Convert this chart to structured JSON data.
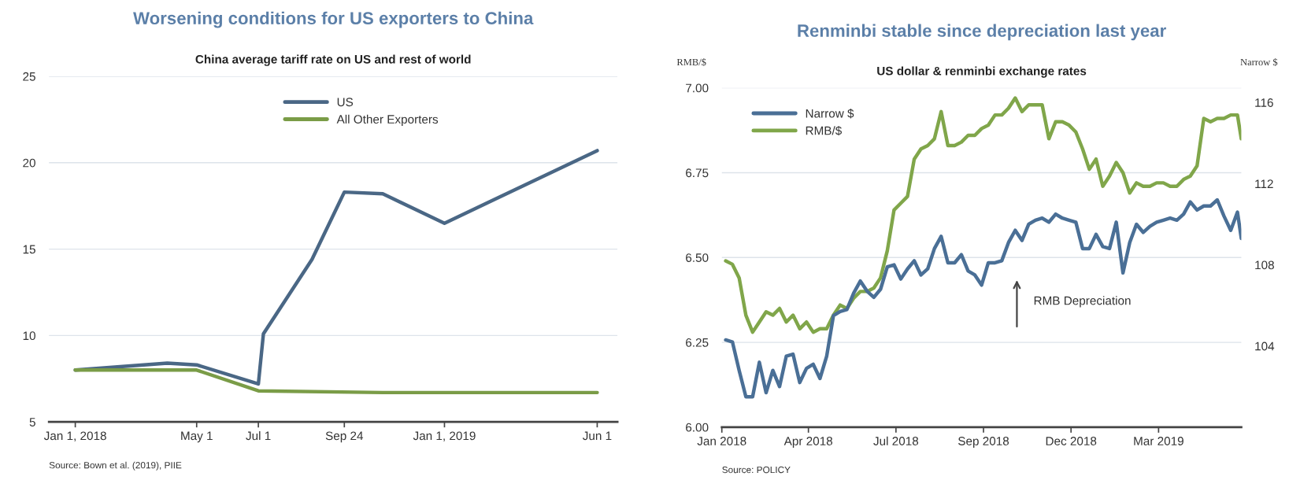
{
  "chart_data": [
    {
      "type": "line",
      "title": "Worsening conditions for US exporters to China",
      "subtitle": "China average tariff rate on US and rest of world",
      "annotations": [
        "Source: Bown et al. (2019), PIIE"
      ],
      "series": [
        {
          "name": "US",
          "color": "#4a6785",
          "x": [
            "2018-01-01",
            "2018-04-02",
            "2018-05-01",
            "2018-07-01",
            "2018-07-06",
            "2018-08-23",
            "2018-09-24",
            "2018-11-01",
            "2019-01-01",
            "2019-06-01"
          ],
          "values": [
            8.0,
            8.4,
            8.3,
            7.2,
            10.1,
            14.4,
            18.3,
            18.2,
            16.5,
            20.7
          ]
        },
        {
          "name": "All Other Exporters",
          "color": "#7a9c47",
          "x": [
            "2018-01-01",
            "2018-05-01",
            "2018-07-01",
            "2018-11-01",
            "2019-06-01"
          ],
          "values": [
            8.0,
            8.0,
            6.8,
            6.7,
            6.7
          ]
        }
      ],
      "xlim": [
        "2017-12-06",
        "2019-06-21"
      ],
      "xticks": [
        {
          "value": "2018-01-01",
          "label": "Jan 1, 2018"
        },
        {
          "value": "2018-05-01",
          "label": "May 1"
        },
        {
          "value": "2018-07-01",
          "label": "Jul 1"
        },
        {
          "value": "2018-09-24",
          "label": "Sep 24"
        },
        {
          "value": "2019-01-01",
          "label": "Jan 1, 2019"
        },
        {
          "value": "2019-06-01",
          "label": "Jun 1"
        }
      ],
      "ylim": [
        5,
        25
      ],
      "yticks": [
        5,
        10,
        15,
        20,
        25
      ],
      "grid": "y",
      "legend": "top"
    },
    {
      "type": "line",
      "title": "Renminbi stable since depreciation last year",
      "subtitle": "US dollar & renminbi exchange rates",
      "ylabel": "RMB/$",
      "y2label": "Narrow $",
      "annotations": [
        "RMB Depreciation",
        "Source: POLICY"
      ],
      "series": [
        {
          "name": "Narrow $",
          "color": "#4a6f96",
          "axis": "y2",
          "x": [
            "2018-01-05",
            "2018-01-12",
            "2018-01-19",
            "2018-01-26",
            "2018-02-02",
            "2018-02-09",
            "2018-02-16",
            "2018-02-23",
            "2018-03-02",
            "2018-03-09",
            "2018-03-16",
            "2018-03-23",
            "2018-03-30",
            "2018-04-06",
            "2018-04-13",
            "2018-04-20",
            "2018-04-27",
            "2018-05-04",
            "2018-05-11",
            "2018-05-18",
            "2018-05-25",
            "2018-06-01",
            "2018-06-08",
            "2018-06-15",
            "2018-06-22",
            "2018-06-29",
            "2018-07-06",
            "2018-07-13",
            "2018-07-20",
            "2018-07-27",
            "2018-08-03",
            "2018-08-10",
            "2018-08-17",
            "2018-08-24",
            "2018-08-31",
            "2018-09-07",
            "2018-09-14",
            "2018-09-21",
            "2018-09-28",
            "2018-10-05",
            "2018-10-12",
            "2018-10-19",
            "2018-10-26",
            "2018-11-02",
            "2018-11-09",
            "2018-11-16",
            "2018-11-23",
            "2018-11-30",
            "2018-12-07",
            "2018-12-14",
            "2018-12-21",
            "2018-12-28",
            "2019-01-04",
            "2019-01-11",
            "2019-01-18",
            "2019-01-25",
            "2019-02-01",
            "2019-02-08",
            "2019-02-15",
            "2019-02-22",
            "2019-03-01",
            "2019-03-08",
            "2019-03-15",
            "2019-03-22",
            "2019-03-29",
            "2019-04-05",
            "2019-04-12",
            "2019-04-19",
            "2019-04-26",
            "2019-05-03",
            "2019-05-10",
            "2019-05-17",
            "2019-05-24",
            "2019-05-31",
            "2019-06-07",
            "2019-06-14",
            "2019-06-21",
            "2019-06-25"
          ],
          "values": [
            104.3,
            104.2,
            102.8,
            101.5,
            101.5,
            103.2,
            101.7,
            102.8,
            102.0,
            103.5,
            103.6,
            102.2,
            102.9,
            103.1,
            102.4,
            103.5,
            105.5,
            105.7,
            105.8,
            106.6,
            107.2,
            106.7,
            106.4,
            106.8,
            107.9,
            108.0,
            107.3,
            107.8,
            108.2,
            107.5,
            107.8,
            108.8,
            109.4,
            108.1,
            108.1,
            108.5,
            107.7,
            107.5,
            107.0,
            108.1,
            108.1,
            108.2,
            109.1,
            109.7,
            109.2,
            110.0,
            110.2,
            110.3,
            110.1,
            110.5,
            110.3,
            110.2,
            110.1,
            108.8,
            108.8,
            109.5,
            108.9,
            108.8,
            110.1,
            107.6,
            109.1,
            110.0,
            109.6,
            109.9,
            110.1,
            110.2,
            110.3,
            110.2,
            110.5,
            111.1,
            110.7,
            110.9,
            110.9,
            111.2,
            110.4,
            109.7,
            110.6,
            109.3
          ]
        },
        {
          "name": "RMB/$",
          "color": "#80a64a",
          "x": [
            "2018-01-05",
            "2018-01-12",
            "2018-01-19",
            "2018-01-26",
            "2018-02-02",
            "2018-02-09",
            "2018-02-16",
            "2018-02-23",
            "2018-03-02",
            "2018-03-09",
            "2018-03-16",
            "2018-03-23",
            "2018-03-30",
            "2018-04-06",
            "2018-04-13",
            "2018-04-20",
            "2018-04-27",
            "2018-05-04",
            "2018-05-11",
            "2018-05-18",
            "2018-05-25",
            "2018-06-01",
            "2018-06-08",
            "2018-06-15",
            "2018-06-22",
            "2018-06-29",
            "2018-07-06",
            "2018-07-13",
            "2018-07-20",
            "2018-07-27",
            "2018-08-03",
            "2018-08-10",
            "2018-08-17",
            "2018-08-24",
            "2018-08-31",
            "2018-09-07",
            "2018-09-14",
            "2018-09-21",
            "2018-09-28",
            "2018-10-05",
            "2018-10-12",
            "2018-10-19",
            "2018-10-26",
            "2018-11-02",
            "2018-11-09",
            "2018-11-16",
            "2018-11-23",
            "2018-11-30",
            "2018-12-07",
            "2018-12-14",
            "2018-12-21",
            "2018-12-28",
            "2019-01-04",
            "2019-01-11",
            "2019-01-18",
            "2019-01-25",
            "2019-02-01",
            "2019-02-08",
            "2019-02-15",
            "2019-02-22",
            "2019-03-01",
            "2019-03-08",
            "2019-03-15",
            "2019-03-22",
            "2019-03-29",
            "2019-04-05",
            "2019-04-12",
            "2019-04-19",
            "2019-04-26",
            "2019-05-03",
            "2019-05-10",
            "2019-05-17",
            "2019-05-24",
            "2019-05-31",
            "2019-06-07",
            "2019-06-14",
            "2019-06-21",
            "2019-06-25"
          ],
          "values": [
            6.49,
            6.48,
            6.44,
            6.33,
            6.28,
            6.31,
            6.34,
            6.33,
            6.35,
            6.31,
            6.33,
            6.29,
            6.31,
            6.28,
            6.29,
            6.29,
            6.33,
            6.36,
            6.35,
            6.38,
            6.4,
            6.4,
            6.41,
            6.44,
            6.52,
            6.64,
            6.66,
            6.68,
            6.79,
            6.82,
            6.83,
            6.85,
            6.93,
            6.83,
            6.83,
            6.84,
            6.86,
            6.86,
            6.88,
            6.89,
            6.92,
            6.92,
            6.94,
            6.97,
            6.93,
            6.95,
            6.95,
            6.95,
            6.85,
            6.9,
            6.9,
            6.89,
            6.87,
            6.82,
            6.76,
            6.79,
            6.71,
            6.74,
            6.78,
            6.75,
            6.69,
            6.72,
            6.71,
            6.71,
            6.72,
            6.72,
            6.71,
            6.71,
            6.73,
            6.74,
            6.77,
            6.91,
            6.9,
            6.91,
            6.91,
            6.92,
            6.92,
            6.85
          ]
        }
      ],
      "xlim": [
        "2018-01-01",
        "2019-06-25"
      ],
      "xticks": [
        {
          "value": "2018-01-01",
          "label": "Jan 2018"
        },
        {
          "value": "2018-04-01",
          "label": "Apr 2018"
        },
        {
          "value": "2018-07-01",
          "label": "Jul 2018"
        },
        {
          "value": "2018-09-30",
          "label": "Sep 2018"
        },
        {
          "value": "2018-12-30",
          "label": "Dec 2018"
        },
        {
          "value": "2019-03-31",
          "label": "Mar 2019"
        }
      ],
      "ylim": [
        6.0,
        7.0
      ],
      "yticks": [
        {
          "value": 6.0,
          "label": "6.00"
        },
        {
          "value": 6.25,
          "label": "6.25"
        },
        {
          "value": 6.5,
          "label": "6.50"
        },
        {
          "value": 6.75,
          "label": "6.75"
        },
        {
          "value": 7.0,
          "label": "7.00"
        }
      ],
      "y2lim": [
        100,
        116.72
      ],
      "y2ticks": [
        104,
        108,
        112,
        116
      ],
      "grid": "y",
      "legend": "top left"
    }
  ]
}
